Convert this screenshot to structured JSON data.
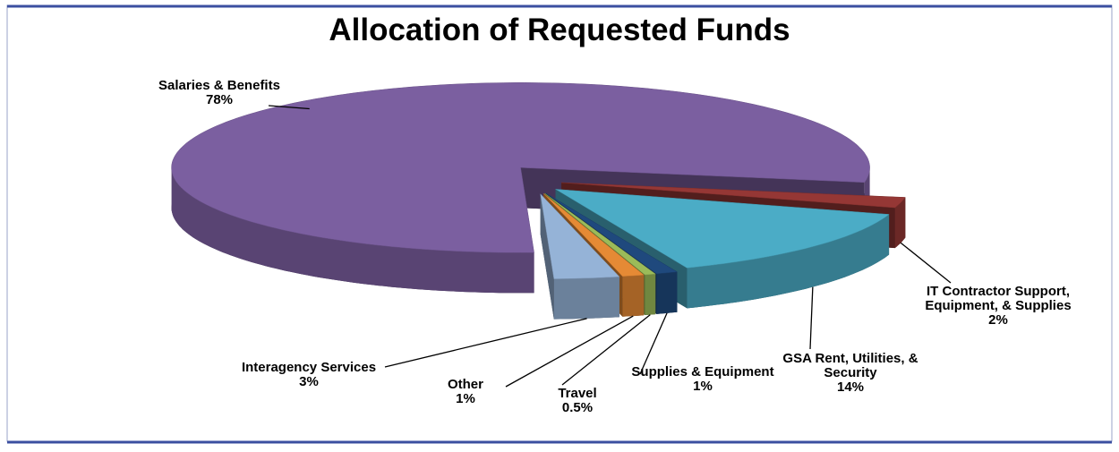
{
  "chart_data": {
    "type": "pie3d",
    "title": "Allocation of Requested Funds",
    "categories": [
      "IT Contractor Support, Equipment, & Supplies",
      "GSA Rent, Utilities, & Security",
      "Supplies & Equipment",
      "Travel",
      "Other",
      "Interagency Services",
      "Salaries & Benefits"
    ],
    "values": [
      2,
      14,
      1,
      0.5,
      1,
      3,
      78
    ],
    "value_labels": [
      "2%",
      "14%",
      "1%",
      "0.5%",
      "1%",
      "3%",
      "78%"
    ],
    "colors": [
      "#953735",
      "#4bacc6",
      "#1f497d",
      "#9bbb59",
      "#e58a35",
      "#95b3d7",
      "#7b5fa0"
    ]
  }
}
